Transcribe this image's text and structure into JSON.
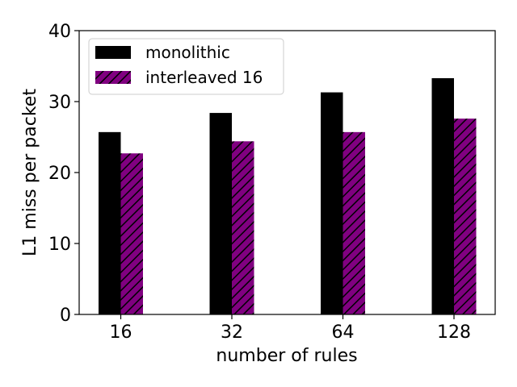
{
  "chart_data": {
    "type": "bar",
    "title": "",
    "xlabel": "number of rules",
    "ylabel": "L1 miss per packet",
    "categories": [
      "16",
      "32",
      "64",
      "128"
    ],
    "ylim": [
      0,
      40
    ],
    "yticks": [
      "0",
      "10",
      "20",
      "30",
      "40"
    ],
    "grid": false,
    "legend_position": "top-left",
    "series": [
      {
        "name": "monolithic",
        "values": [
          25.7,
          28.4,
          31.3,
          33.3
        ],
        "color": "#000000",
        "pattern": "solid"
      },
      {
        "name": "interleaved 16",
        "values": [
          22.7,
          24.4,
          25.7,
          27.6
        ],
        "color": "#800080",
        "pattern": "hatch"
      }
    ]
  }
}
